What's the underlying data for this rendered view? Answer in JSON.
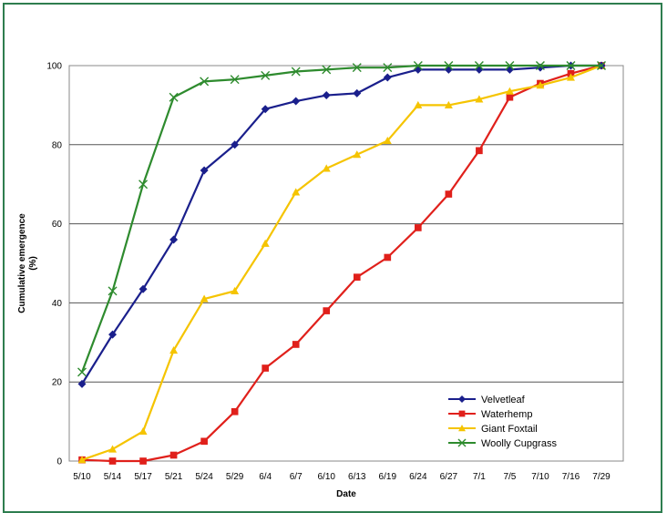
{
  "chart_data": {
    "type": "line",
    "title": "",
    "xlabel": "Date",
    "ylabel_line1": "Cumulative emergence",
    "ylabel_line2": "(%)",
    "ylim": [
      0,
      100
    ],
    "yticks": [
      0,
      20,
      40,
      60,
      80,
      100
    ],
    "grid": "horizontal",
    "legend_position": "bottom-right",
    "categories": [
      "5/10",
      "5/14",
      "5/17",
      "5/21",
      "5/24",
      "5/29",
      "6/4",
      "6/7",
      "6/10",
      "6/13",
      "6/19",
      "6/24",
      "6/27",
      "7/1",
      "7/5",
      "7/10",
      "7/16",
      "7/29"
    ],
    "series": [
      {
        "name": "Velvetleaf",
        "color": "#1a1f8c",
        "marker": "diamond",
        "values": [
          19.5,
          32,
          43.5,
          56,
          73.5,
          80,
          89,
          91,
          92.5,
          93,
          97,
          99,
          99,
          99,
          99,
          99.5,
          100,
          100
        ]
      },
      {
        "name": "Waterhemp",
        "color": "#e0201b",
        "marker": "square",
        "values": [
          0.3,
          0,
          0,
          1.5,
          5,
          12.5,
          23.5,
          29.5,
          38,
          46.5,
          51.5,
          59,
          67.5,
          78.5,
          92,
          95.5,
          98,
          100
        ]
      },
      {
        "name": "Giant Foxtail",
        "color": "#f5c400",
        "marker": "triangle",
        "values": [
          0.3,
          3,
          7.5,
          28,
          41,
          43,
          55,
          68,
          74,
          77.5,
          81,
          90,
          90,
          91.5,
          93.5,
          95,
          97,
          100
        ]
      },
      {
        "name": "Woolly Cupgrass",
        "color": "#2e8b2e",
        "marker": "x",
        "values": [
          22.5,
          43,
          70,
          92,
          96,
          96.5,
          97.5,
          98.5,
          99,
          99.5,
          99.5,
          100,
          100,
          100,
          100,
          100,
          100,
          100
        ]
      }
    ]
  }
}
